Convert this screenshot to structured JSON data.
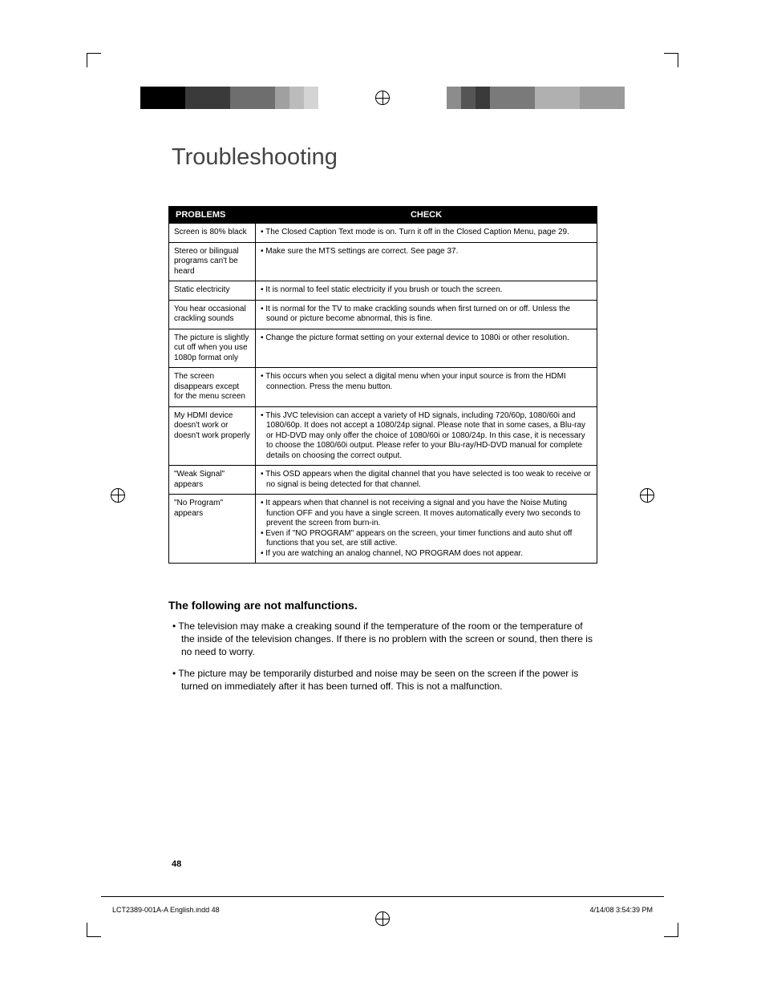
{
  "title": "Troubleshooting",
  "table": {
    "headers": {
      "problems": "PROBLEMS",
      "check": "CHECK"
    },
    "rows": [
      {
        "problem": "Screen is 80% black",
        "checks": [
          "• The Closed Caption Text mode is on. Turn it off in the Closed Caption Menu, page 29."
        ]
      },
      {
        "problem": "Stereo or bilingual programs can't be heard",
        "checks": [
          "• Make sure the MTS settings are correct. See page 37."
        ]
      },
      {
        "problem": "Static electricity",
        "checks": [
          "• It is normal to feel static electricity if you brush or touch the screen."
        ]
      },
      {
        "problem": "You hear occasional crackling sounds",
        "checks": [
          "• It is normal for the TV to make crackling sounds when first turned on or off. Unless the sound or picture become abnormal, this is fine."
        ]
      },
      {
        "problem": "The picture is slightly cut off when you use 1080p format only",
        "checks": [
          "• Change the picture format setting on your external device to 1080i or other resolution."
        ]
      },
      {
        "problem": "The screen disappears except for the menu screen",
        "checks": [
          "• This occurs when you select a digital menu when your input source is from the HDMI connection.  Press the menu button."
        ]
      },
      {
        "problem": "My HDMI device doesn't work or doesn't work properly",
        "checks": [
          "• This JVC television can accept a variety of HD signals, including 720/60p, 1080/60i and 1080/60p.  It does not accept a 1080/24p signal.  Please note that in some cases, a Blu-ray or HD-DVD may only offer the choice of 1080/60i or 1080/24p.  In this case, it is necessary to choose the 1080/60i output.  Please refer to your Blu-ray/HD-DVD manual for complete details on choosing the correct output."
        ]
      },
      {
        "problem": "\"Weak Signal\" appears",
        "checks": [
          "• This OSD appears when the digital channel that you have selected is too weak to receive or no signal is being detected for that channel."
        ]
      },
      {
        "problem": "\"No Program\" appears",
        "checks": [
          "• It appears when that channel is not receiving a signal and you have the Noise Muting function OFF and you have a single screen.  It moves automatically every two seconds to prevent the screen from burn-in.",
          "• Even if \"NO PROGRAM\" appears on the screen, your timer functions and auto shut off functions that you set, are still active.",
          "• If you are watching an analog channel, NO PROGRAM does not appear."
        ]
      }
    ]
  },
  "not_malfunctions_heading": "The following are not malfunctions.",
  "not_malfunctions_items": [
    "The television may make a creaking sound if the temperature of the room or the temperature of the inside of the television changes. If there is no problem with the screen or sound, then there is no need to worry.",
    "The picture may be temporarily disturbed and noise may be seen on the screen if the power is turned on immediately after it has been turned off.  This is not a malfunction."
  ],
  "page_number": "48",
  "footer": {
    "file": "LCT2389-001A-A English.indd   48",
    "timestamp": "4/14/08   3:54:39 PM"
  },
  "swatches_left": [
    {
      "w": "big",
      "c": "#000000"
    },
    {
      "w": "big",
      "c": "#3a3a3a"
    },
    {
      "w": "big",
      "c": "#6e6e6e"
    },
    {
      "w": "sm",
      "c": "#a0a0a0"
    },
    {
      "w": "sm",
      "c": "#bbbbbb"
    },
    {
      "w": "sm",
      "c": "#d4d4d4"
    },
    {
      "w": "sm",
      "c": "#ffffff"
    }
  ],
  "swatches_right": [
    {
      "w": "big",
      "c": "#9a9a9a"
    },
    {
      "w": "big",
      "c": "#b0b0b0"
    },
    {
      "w": "big",
      "c": "#7a7a7a"
    },
    {
      "w": "sm",
      "c": "#3a3a3a"
    },
    {
      "w": "sm",
      "c": "#555555"
    },
    {
      "w": "sm",
      "c": "#8c8c8c"
    },
    {
      "w": "sm",
      "c": "#ffffff"
    }
  ]
}
